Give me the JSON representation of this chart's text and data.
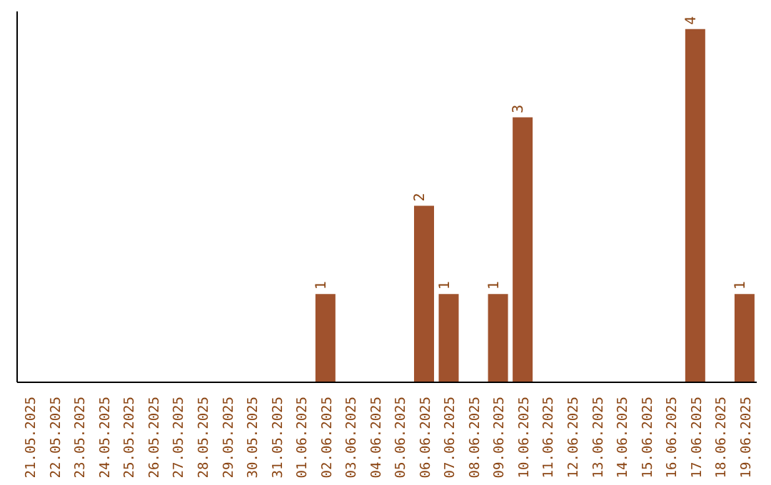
{
  "chart_data": {
    "type": "bar",
    "categories": [
      "21.05.2025",
      "22.05.2025",
      "23.05.2025",
      "24.05.2025",
      "25.05.2025",
      "26.05.2025",
      "27.05.2025",
      "28.05.2025",
      "29.05.2025",
      "30.05.2025",
      "31.05.2025",
      "01.06.2025",
      "02.06.2025",
      "03.06.2025",
      "04.06.2025",
      "05.06.2025",
      "06.06.2025",
      "07.06.2025",
      "08.06.2025",
      "09.06.2025",
      "10.06.2025",
      "11.06.2025",
      "12.06.2025",
      "13.06.2025",
      "14.06.2025",
      "15.06.2025",
      "16.06.2025",
      "17.06.2025",
      "18.06.2025",
      "19.06.2025"
    ],
    "values": [
      null,
      null,
      null,
      null,
      null,
      null,
      null,
      null,
      null,
      null,
      null,
      null,
      1,
      null,
      null,
      null,
      2,
      1,
      null,
      1,
      3,
      null,
      null,
      null,
      null,
      null,
      null,
      4,
      null,
      1
    ],
    "data_labels": true,
    "color": "#a0522d"
  }
}
